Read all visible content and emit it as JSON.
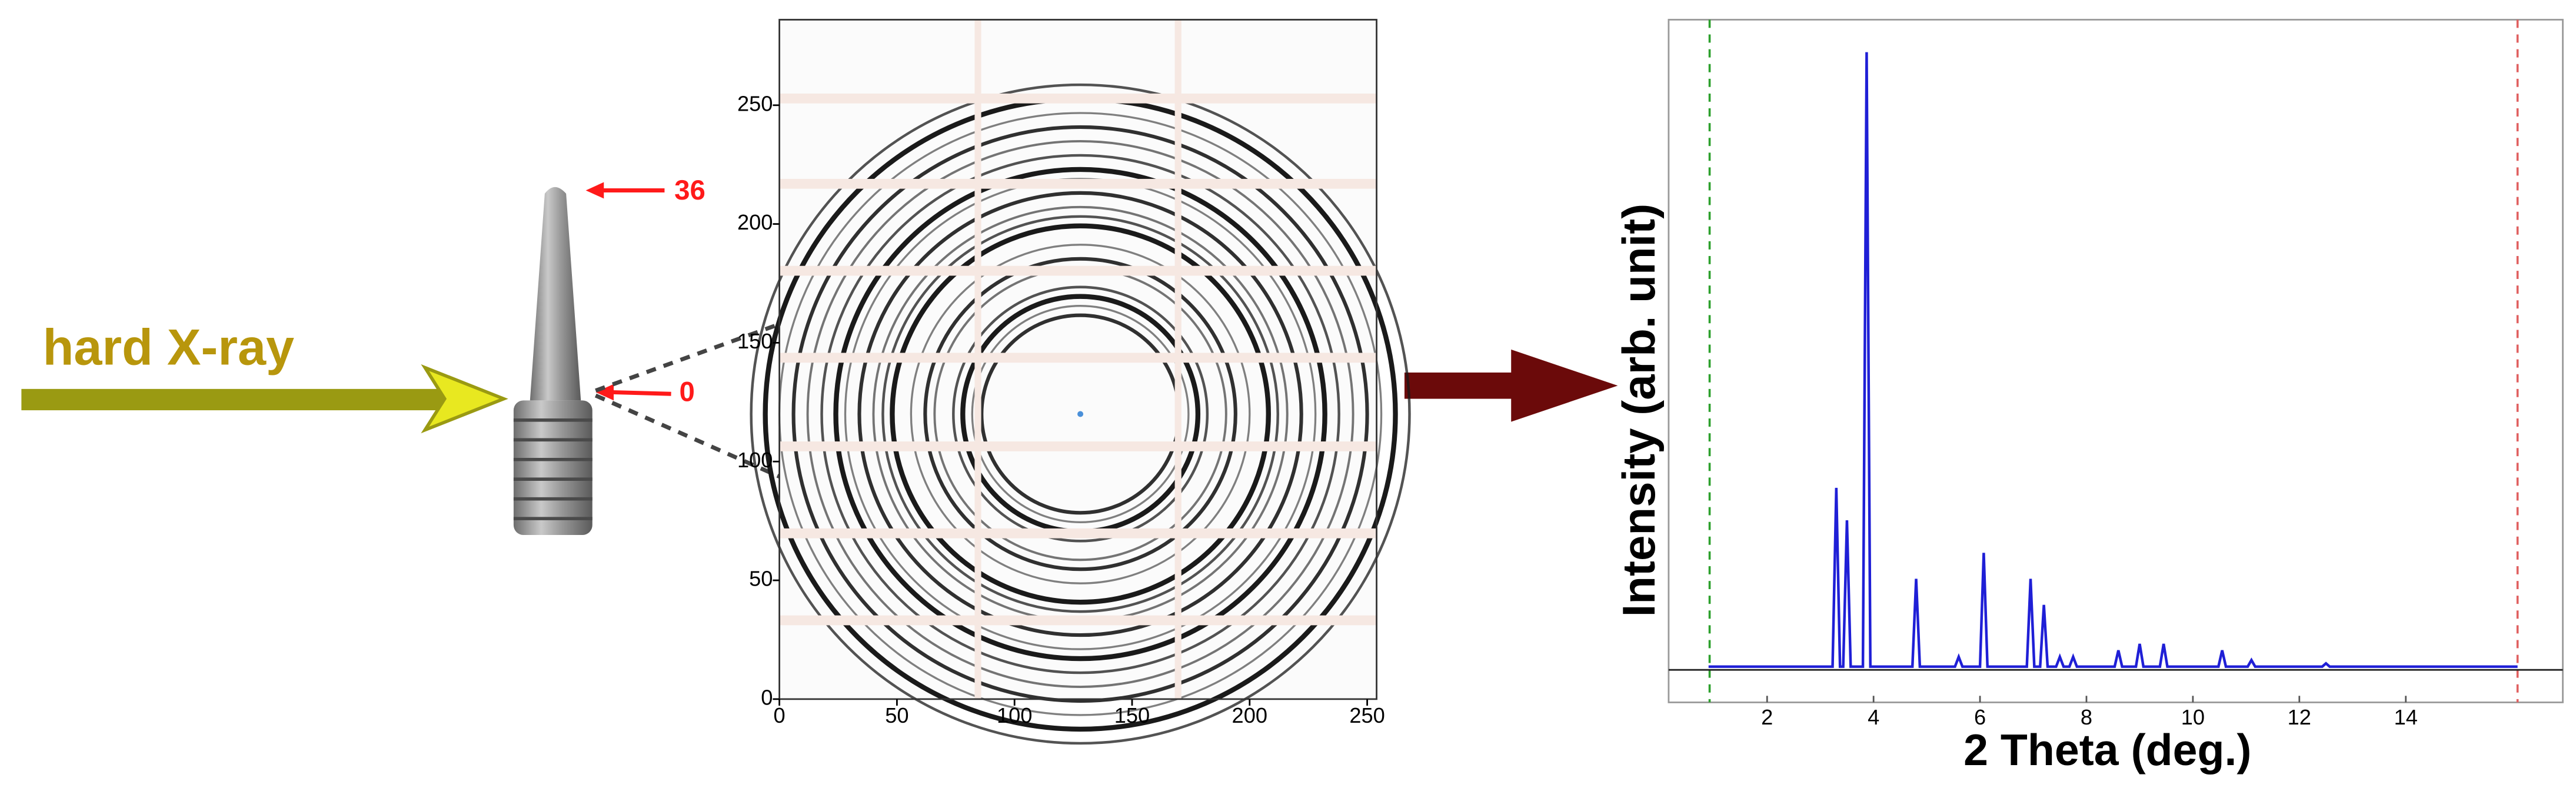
{
  "annotations": {
    "beam_label": "hard X-ray",
    "height_top": "36",
    "height_bottom": "0"
  },
  "chart_data": [
    {
      "type": "detector",
      "xlim": [
        0,
        254
      ],
      "ylim": [
        0,
        286
      ],
      "xticks": [
        0,
        50,
        100,
        150,
        200,
        250
      ],
      "yticks": [
        0,
        50,
        100,
        150,
        200,
        250
      ],
      "center": [
        128,
        120
      ],
      "rings": [
        42,
        46,
        50,
        54,
        62,
        66,
        72,
        80,
        84,
        88,
        94,
        100,
        104,
        110,
        116,
        122,
        128,
        134,
        140
      ],
      "ring_color": "#1a1a1a",
      "center_color": "#4a90d9"
    },
    {
      "type": "line",
      "xlabel": "2 Theta (deg.)",
      "ylabel": "Intensity (arb. unit)",
      "xlim": [
        0.15,
        16.95
      ],
      "ylim": [
        -5,
        100
      ],
      "xticks": [
        2,
        4,
        6,
        8,
        10,
        12,
        14
      ],
      "baseline": 0,
      "vlines": [
        {
          "value": 0.92,
          "color": "#2ca02c"
        },
        {
          "value": 16.1,
          "color": "#e06060"
        }
      ],
      "x": [
        0.9,
        3.23,
        3.3,
        3.37,
        3.43,
        3.5,
        3.57,
        3.8,
        3.87,
        3.94,
        4.73,
        4.8,
        4.87,
        5.53,
        5.6,
        5.67,
        6.0,
        6.07,
        6.14,
        6.88,
        6.95,
        7.02,
        7.13,
        7.2,
        7.27,
        7.43,
        7.5,
        7.57,
        7.68,
        7.75,
        7.82,
        8.53,
        8.6,
        8.67,
        8.93,
        9.0,
        9.07,
        9.38,
        9.45,
        9.52,
        10.48,
        10.55,
        10.62,
        11.03,
        11.1,
        11.17,
        12.43,
        12.5,
        12.57,
        16.1
      ],
      "series": [
        {
          "color": "#1f1fd6",
          "values": [
            0.5,
            0.5,
            28,
            0.5,
            0.5,
            23,
            0.5,
            0.5,
            95,
            0.5,
            0.5,
            14,
            0.5,
            0.5,
            2,
            0.5,
            0.5,
            18,
            0.5,
            0.5,
            14,
            0.5,
            0.5,
            10,
            0.5,
            0.5,
            2,
            0.5,
            0.5,
            2,
            0.5,
            0.5,
            3,
            0.5,
            0.5,
            4,
            0.5,
            0.5,
            4,
            0.5,
            0.5,
            3,
            0.5,
            0.5,
            1.5,
            0.5,
            0.5,
            1,
            0.5,
            0.5
          ]
        }
      ]
    }
  ]
}
